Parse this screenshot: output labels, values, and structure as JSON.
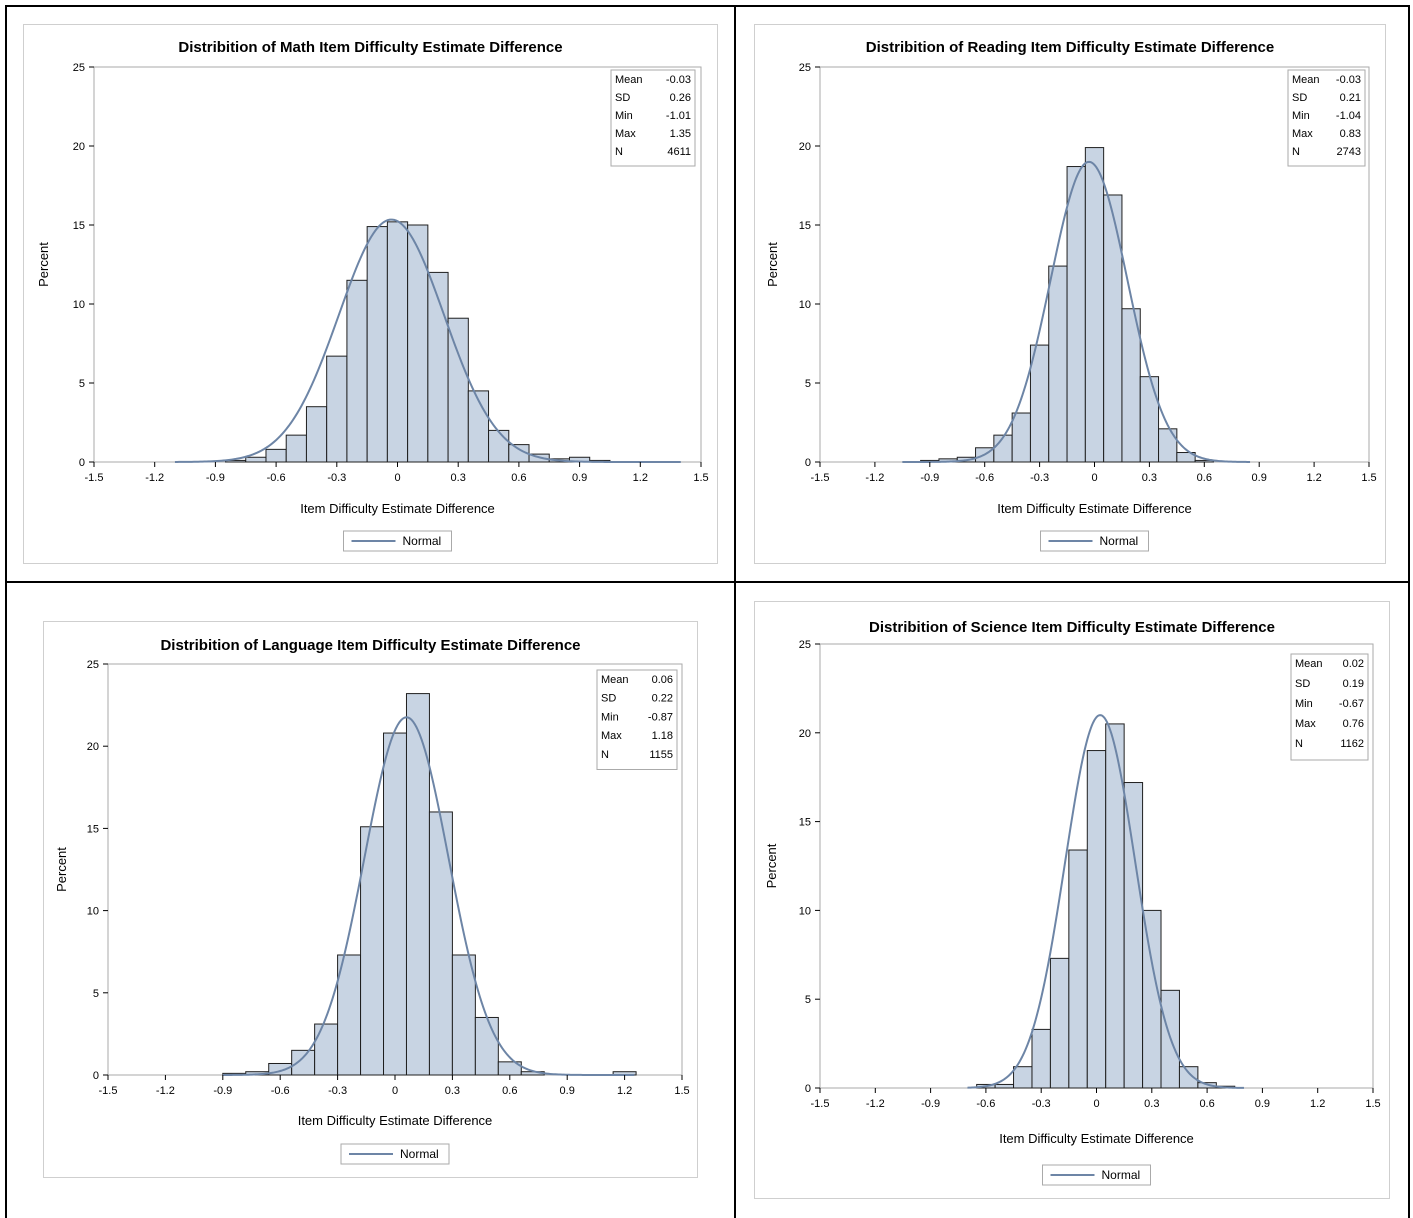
{
  "colors": {
    "bar_fill": "#c8d4e3",
    "bar_stroke": "#1f1f1f",
    "normal_curve": "#6d85a6",
    "frame": "#aaaaaa",
    "panel_border": "#cfcfcf"
  },
  "legend_label": "Normal",
  "stat_labels": [
    "Mean",
    "SD",
    "Min",
    "Max",
    "N"
  ],
  "chart_data": [
    {
      "type": "bar",
      "title": "Distribition of Math Item Difficulty Estimate Difference",
      "xlabel": "Item Difficulty Estimate Difference",
      "ylabel": "Percent",
      "xlim": [
        -1.5,
        1.5
      ],
      "ylim": [
        0,
        25
      ],
      "xticks": [
        "-1.5",
        "-1.2",
        "-0.9",
        "-0.6",
        "-0.3",
        "0",
        "0.3",
        "0.6",
        "0.9",
        "1.2",
        "1.5"
      ],
      "yticks": [
        "0",
        "5",
        "10",
        "15",
        "20",
        "25"
      ],
      "bin_width": 0.1,
      "bin_centers": [
        -0.8,
        -0.7,
        -0.6,
        -0.5,
        -0.4,
        -0.3,
        -0.2,
        -0.1,
        0.0,
        0.1,
        0.2,
        0.3,
        0.4,
        0.5,
        0.6,
        0.7,
        0.8,
        0.9,
        1.0
      ],
      "values": [
        0.1,
        0.3,
        0.8,
        1.7,
        3.5,
        6.7,
        11.5,
        14.9,
        15.2,
        15.0,
        12.0,
        9.1,
        4.5,
        2.0,
        1.1,
        0.5,
        0.2,
        0.3,
        0.1
      ],
      "normal": {
        "mean": -0.03,
        "sd": 0.26,
        "x_range": [
          -1.1,
          1.4
        ]
      },
      "stats": [
        "-0.03",
        "0.26",
        "-1.01",
        "1.35",
        "4611"
      ],
      "legend": "bottom-center",
      "grid": false
    },
    {
      "type": "bar",
      "title": "Distribition of Reading Item Difficulty Estimate Difference",
      "xlabel": "Item Difficulty Estimate Difference",
      "ylabel": "Percent",
      "xlim": [
        -1.5,
        1.5
      ],
      "ylim": [
        0,
        25
      ],
      "xticks": [
        "-1.5",
        "-1.2",
        "-0.9",
        "-0.6",
        "-0.3",
        "0",
        "0.3",
        "0.6",
        "0.9",
        "1.2",
        "1.5"
      ],
      "yticks": [
        "0",
        "5",
        "10",
        "15",
        "20",
        "25"
      ],
      "bin_width": 0.1,
      "bin_centers": [
        -0.9,
        -0.8,
        -0.7,
        -0.6,
        -0.5,
        -0.4,
        -0.3,
        -0.2,
        -0.1,
        0.0,
        0.1,
        0.2,
        0.3,
        0.4,
        0.5,
        0.6
      ],
      "values": [
        0.1,
        0.2,
        0.3,
        0.9,
        1.7,
        3.1,
        7.4,
        12.4,
        18.7,
        19.9,
        16.9,
        9.7,
        5.4,
        2.1,
        0.6,
        0.1
      ],
      "normal": {
        "mean": -0.03,
        "sd": 0.21,
        "x_range": [
          -1.05,
          0.85
        ]
      },
      "stats": [
        "-0.03",
        "0.21",
        "-1.04",
        "0.83",
        "2743"
      ],
      "legend": "bottom-center",
      "grid": false
    },
    {
      "type": "bar",
      "title": "Distribition of Language Item Difficulty Estimate Difference",
      "xlabel": "Item Difficulty Estimate Difference",
      "ylabel": "Percent",
      "xlim": [
        -1.5,
        1.5
      ],
      "ylim": [
        0,
        25
      ],
      "xticks": [
        "-1.5",
        "-1.2",
        "-0.9",
        "-0.6",
        "-0.3",
        "0",
        "0.3",
        "0.6",
        "0.9",
        "1.2",
        "1.5"
      ],
      "yticks": [
        "0",
        "5",
        "10",
        "15",
        "20",
        "25"
      ],
      "bin_width": 0.12,
      "bin_centers": [
        -0.84,
        -0.72,
        -0.6,
        -0.48,
        -0.36,
        -0.24,
        -0.12,
        0.0,
        0.12,
        0.24,
        0.36,
        0.48,
        0.6,
        0.72,
        1.2
      ],
      "values": [
        0.1,
        0.2,
        0.7,
        1.5,
        3.1,
        7.3,
        15.1,
        20.8,
        23.2,
        16.0,
        7.3,
        3.5,
        0.8,
        0.2,
        0.2
      ],
      "normal": {
        "mean": 0.06,
        "sd": 0.22,
        "x_range": [
          -0.9,
          1.25
        ]
      },
      "stats": [
        "0.06",
        "0.22",
        "-0.87",
        "1.18",
        "1155"
      ],
      "legend": "bottom-center",
      "grid": false
    },
    {
      "type": "bar",
      "title": "Distribition of Science Item Difficulty Estimate Difference",
      "xlabel": "Item Difficulty Estimate Difference",
      "ylabel": "Percent",
      "xlim": [
        -1.5,
        1.5
      ],
      "ylim": [
        0,
        25
      ],
      "xticks": [
        "-1.5",
        "-1.2",
        "-0.9",
        "-0.6",
        "-0.3",
        "0",
        "0.3",
        "0.6",
        "0.9",
        "1.2",
        "1.5"
      ],
      "yticks": [
        "0",
        "5",
        "10",
        "15",
        "20",
        "25"
      ],
      "bin_width": 0.1,
      "bin_centers": [
        -0.6,
        -0.5,
        -0.4,
        -0.3,
        -0.2,
        -0.1,
        0.0,
        0.1,
        0.2,
        0.3,
        0.4,
        0.5,
        0.6,
        0.7
      ],
      "values": [
        0.2,
        0.2,
        1.2,
        3.3,
        7.3,
        13.4,
        19.0,
        20.5,
        17.2,
        10.0,
        5.5,
        1.2,
        0.3,
        0.1
      ],
      "normal": {
        "mean": 0.02,
        "sd": 0.19,
        "x_range": [
          -0.7,
          0.8
        ]
      },
      "stats": [
        "0.02",
        "0.19",
        "-0.67",
        "0.76",
        "1162"
      ],
      "legend": "bottom-center",
      "grid": false
    }
  ]
}
